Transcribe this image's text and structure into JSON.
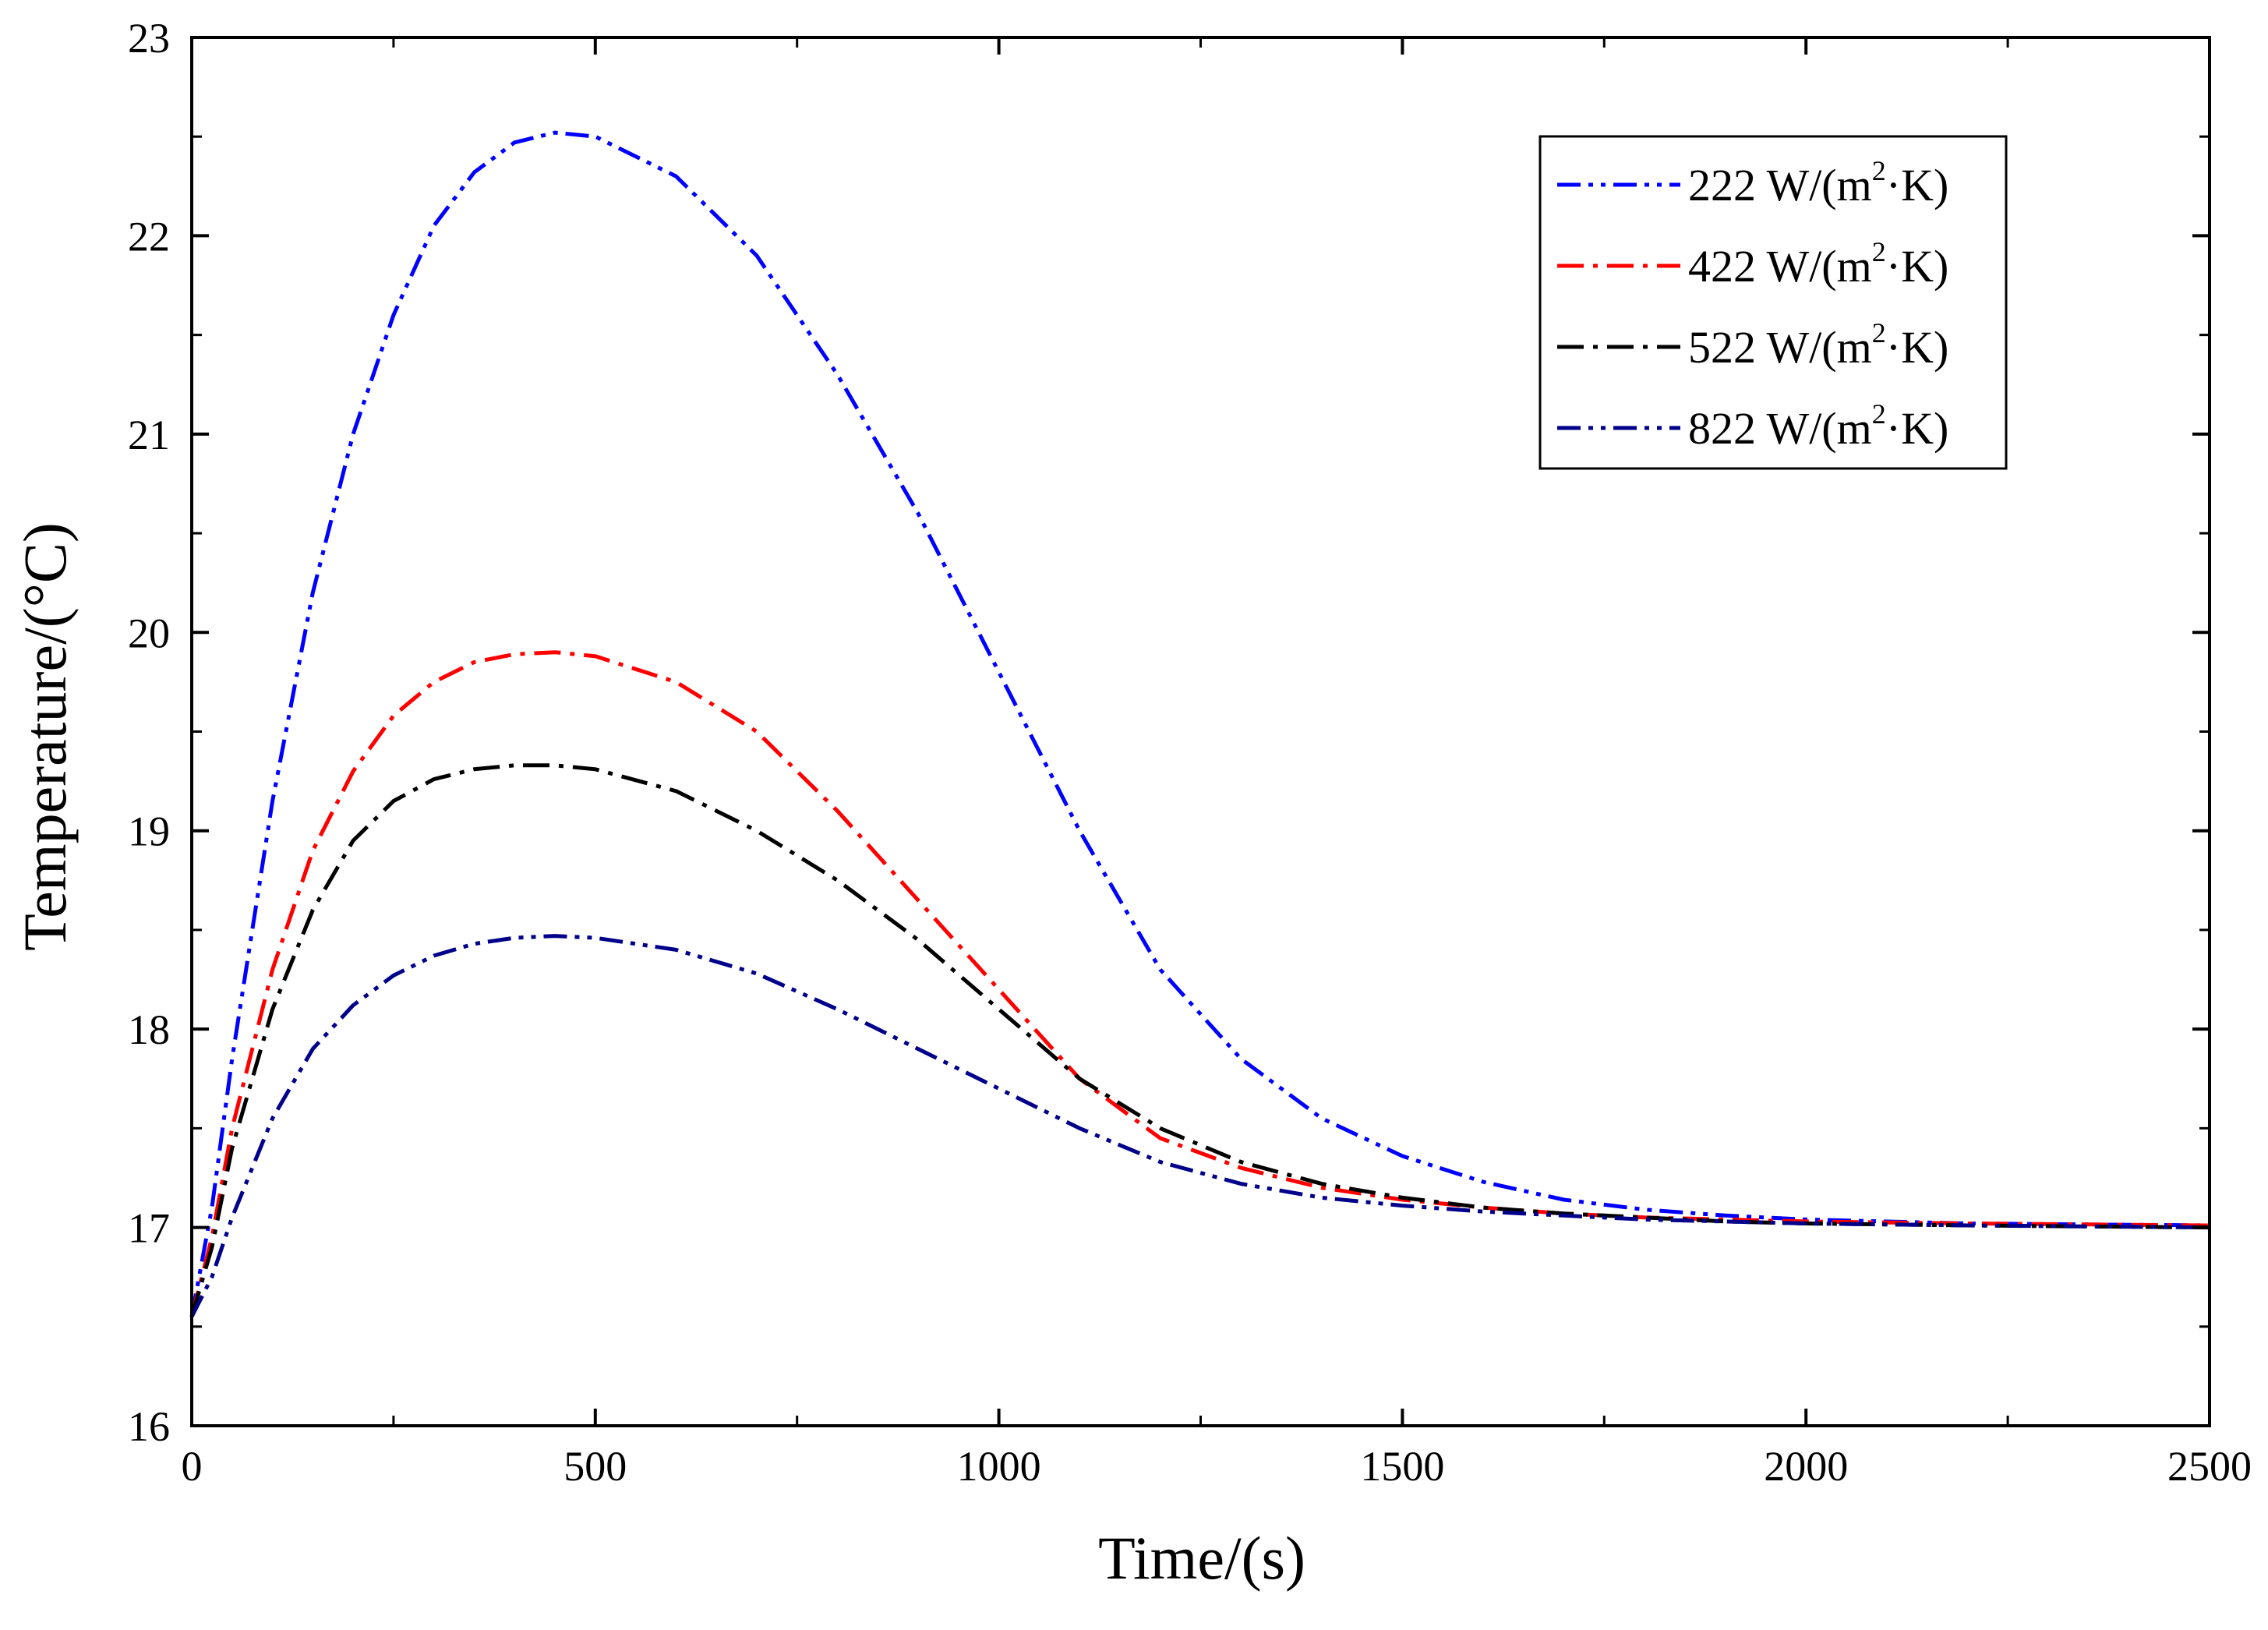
{
  "chart_data": {
    "type": "line",
    "title": "",
    "xlabel": "Time/(s)",
    "ylabel": "Temperature/(°C)",
    "xlim": [
      0,
      2500
    ],
    "ylim": [
      16,
      23
    ],
    "xticks": [
      0,
      500,
      1000,
      1500,
      2000,
      2500
    ],
    "yticks": [
      16,
      17,
      18,
      19,
      20,
      21,
      22,
      23
    ],
    "xtick_labels": [
      "0",
      "500",
      "1000",
      "1500",
      "2000",
      "2500"
    ],
    "ytick_labels": [
      "16",
      "17",
      "18",
      "19",
      "20",
      "21",
      "22",
      "23"
    ],
    "grid": false,
    "legend_position": "top-right",
    "x": [
      0,
      25,
      50,
      100,
      150,
      200,
      250,
      300,
      350,
      400,
      450,
      500,
      600,
      700,
      800,
      900,
      1000,
      1100,
      1200,
      1300,
      1400,
      1500,
      1600,
      1700,
      1800,
      1900,
      2000,
      2200,
      2500
    ],
    "series": [
      {
        "name": "222 W/(m²·K)",
        "label_main": "222 W/(m",
        "label_sup": "2",
        "label_tail": "·K)",
        "color": "#0000ff",
        "dash": "dash-dot-dot",
        "values": [
          16.55,
          17.1,
          17.85,
          19.15,
          20.2,
          21.0,
          21.6,
          22.05,
          22.32,
          22.47,
          22.52,
          22.5,
          22.3,
          21.9,
          21.3,
          20.6,
          19.8,
          19.0,
          18.3,
          17.85,
          17.55,
          17.36,
          17.23,
          17.14,
          17.09,
          17.06,
          17.04,
          17.02,
          17.01
        ]
      },
      {
        "name": "422 W/(m²·K)",
        "label_main": "422 W/(m",
        "label_sup": "2",
        "label_tail": "·K)",
        "color": "#ff0000",
        "dash": "dash-dot",
        "values": [
          16.55,
          16.95,
          17.5,
          18.3,
          18.9,
          19.3,
          19.58,
          19.75,
          19.85,
          19.89,
          19.9,
          19.88,
          19.75,
          19.5,
          19.1,
          18.65,
          18.2,
          17.75,
          17.45,
          17.3,
          17.2,
          17.14,
          17.1,
          17.07,
          17.05,
          17.04,
          17.03,
          17.02,
          17.01
        ]
      },
      {
        "name": "522 W/(m²·K)",
        "label_main": "522 W/(m",
        "label_sup": "2",
        "label_tail": "·K)",
        "color": "#000000",
        "dash": "dash-dot",
        "values": [
          16.55,
          16.9,
          17.4,
          18.1,
          18.6,
          18.95,
          19.15,
          19.26,
          19.31,
          19.33,
          19.33,
          19.31,
          19.2,
          19.0,
          18.75,
          18.45,
          18.1,
          17.75,
          17.5,
          17.33,
          17.22,
          17.15,
          17.1,
          17.07,
          17.05,
          17.03,
          17.02,
          17.01,
          17.0
        ]
      },
      {
        "name": "822 W/(m²·K)",
        "label_main": "822 W/(m",
        "label_sup": "2",
        "label_tail": "·K)",
        "color": "#00008b",
        "dash": "dash-dot-dot",
        "values": [
          16.55,
          16.75,
          17.05,
          17.55,
          17.9,
          18.12,
          18.27,
          18.37,
          18.43,
          18.46,
          18.47,
          18.46,
          18.4,
          18.28,
          18.1,
          17.9,
          17.7,
          17.5,
          17.33,
          17.22,
          17.15,
          17.11,
          17.08,
          17.06,
          17.04,
          17.03,
          17.02,
          17.01,
          17.0
        ]
      }
    ]
  }
}
